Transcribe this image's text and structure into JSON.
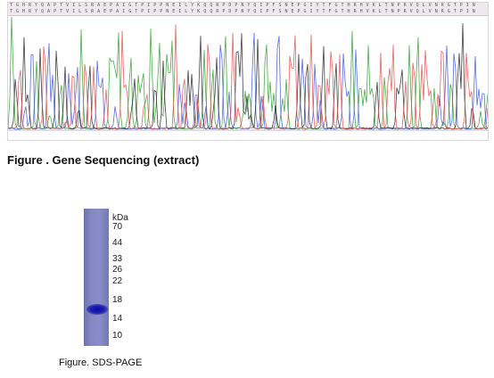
{
  "chromatogram": {
    "sequence_row1": "TGHRYQAPTVILSRAEPAIGTPIPPNEILYKQQRPDPNYQIPFSNEPGIYTFGTHRHVKLTNPRVQLVNRGTPIN",
    "sequence_row2": "TGHRYQAPTVILSRAEPAIGTPIPPNEILYKQQRPDPNYQIPFSNEPGIYTFGTHRHVKLTNPRVQLVNRGTPIN",
    "colors": {
      "A": "#2ca02c",
      "C": "#3b55d9",
      "G": "#222222",
      "T": "#e24a4a",
      "strip": "#efe9ef"
    }
  },
  "figure1": {
    "caption": "Figure . Gene Sequencing (extract)"
  },
  "gel": {
    "unit": "kDa",
    "markers": [
      "70",
      "44",
      "33",
      "26",
      "22",
      "18",
      "14",
      "10"
    ],
    "band_color": "#1416a8",
    "lane_color": "#7d81bd"
  },
  "figure2": {
    "caption": "Figure. SDS-PAGE"
  }
}
